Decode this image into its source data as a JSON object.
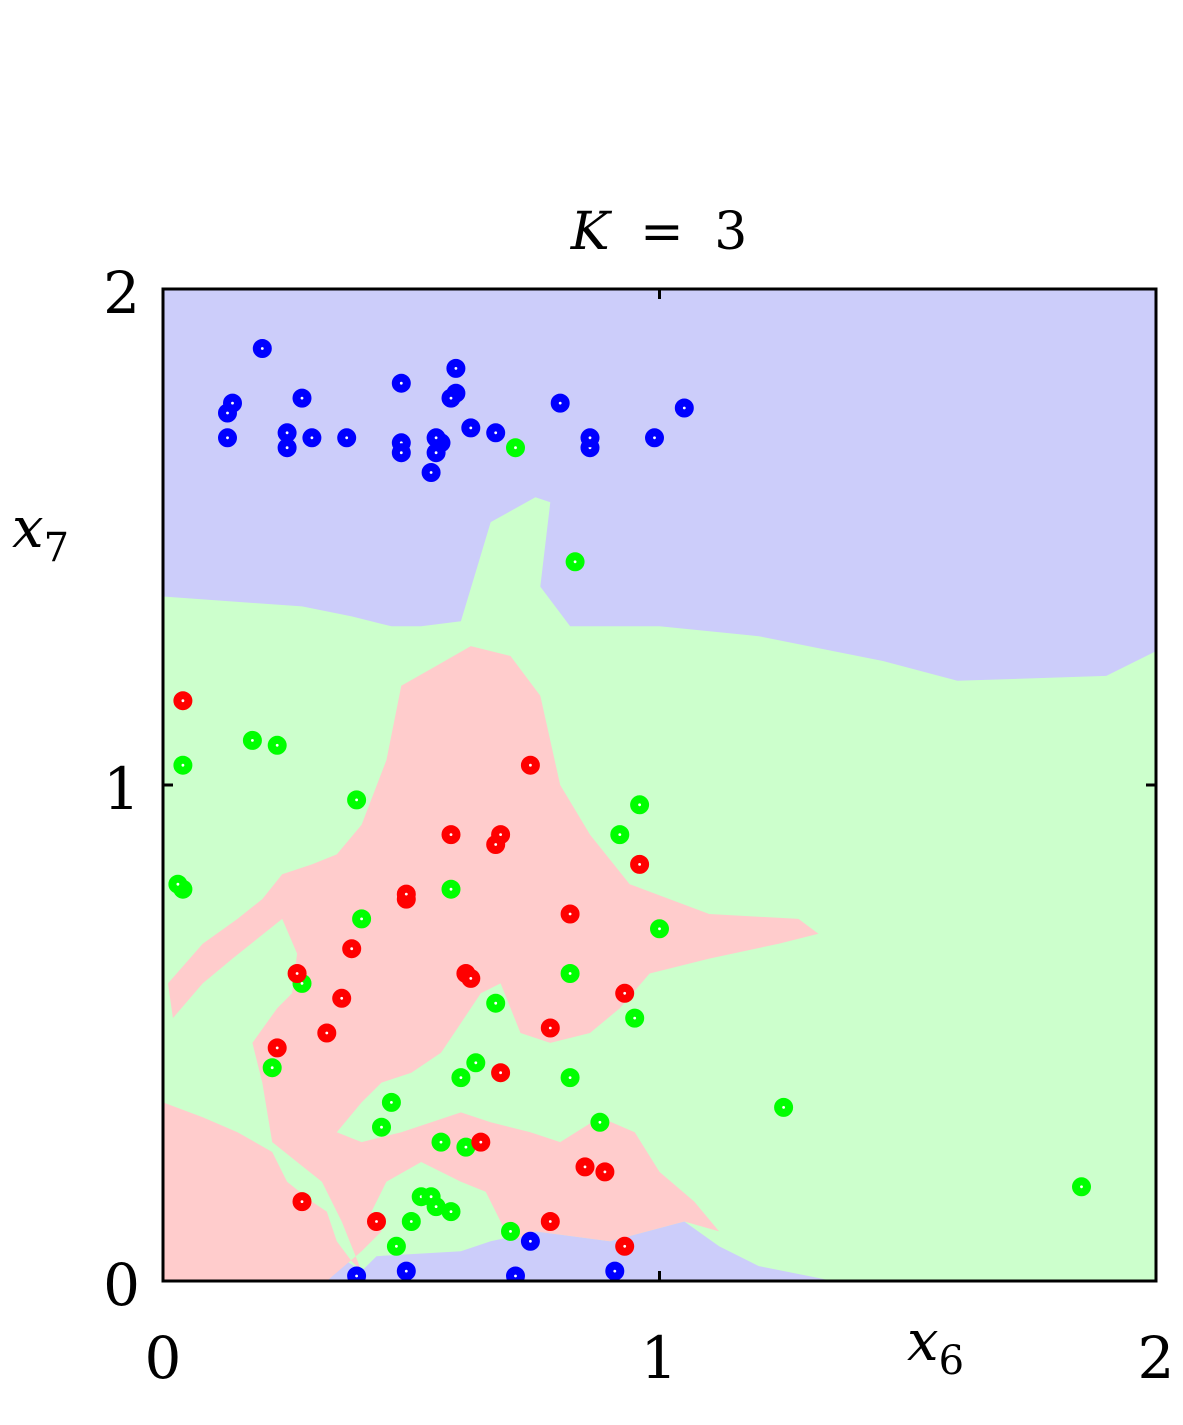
{
  "chart_data": {
    "type": "scatter",
    "title": "K = 3",
    "title_parts": {
      "var": "K",
      "op": "=",
      "num": "3"
    },
    "xlabel": {
      "base": "x",
      "sub": "6"
    },
    "ylabel": {
      "base": "x",
      "sub": "7"
    },
    "xlim": [
      0,
      2
    ],
    "ylim": [
      0,
      2
    ],
    "xticks": [
      "0",
      "1",
      "2"
    ],
    "yticks": [
      "0",
      "1",
      "2"
    ],
    "grid": false,
    "legend": "none",
    "region_colors": {
      "blue": "#cccdfa",
      "green": "#ccffcc",
      "red": "#ffcccc"
    },
    "point_colors": {
      "blue": "#0000ff",
      "green": "#00ff00",
      "red": "#ff0000"
    },
    "regions": {
      "blue": [
        [
          0,
          2
        ],
        [
          2,
          2
        ],
        [
          2,
          1.27
        ],
        [
          1.9,
          1.22
        ],
        [
          1.6,
          1.21
        ],
        [
          1.45,
          1.25
        ],
        [
          1.35,
          1.27
        ],
        [
          1.2,
          1.3
        ],
        [
          1.0,
          1.32
        ],
        [
          0.82,
          1.32
        ],
        [
          0.76,
          1.4
        ],
        [
          0.78,
          1.57
        ],
        [
          0.75,
          1.58
        ],
        [
          0.66,
          1.53
        ],
        [
          0.63,
          1.43
        ],
        [
          0.6,
          1.33
        ],
        [
          0.52,
          1.32
        ],
        [
          0.46,
          1.32
        ],
        [
          0.38,
          1.34
        ],
        [
          0.28,
          1.36
        ],
        [
          0.14,
          1.37
        ],
        [
          0,
          1.38
        ]
      ],
      "blue_bottom": [
        [
          0.33,
          0
        ],
        [
          0.37,
          0.04
        ],
        [
          0.4,
          0.02
        ],
        [
          0.43,
          0.05
        ],
        [
          0.6,
          0.06
        ],
        [
          0.66,
          0.08
        ],
        [
          0.75,
          0.1
        ],
        [
          0.9,
          0.08
        ],
        [
          1.05,
          0.12
        ],
        [
          1.12,
          0.07
        ],
        [
          1.2,
          0.03
        ],
        [
          1.3,
          0.01
        ],
        [
          1.35,
          0
        ]
      ],
      "red": [
        [
          0,
          0.36
        ],
        [
          0.08,
          0.33
        ],
        [
          0.15,
          0.3
        ],
        [
          0.22,
          0.26
        ],
        [
          0.25,
          0.2
        ],
        [
          0.3,
          0.16
        ],
        [
          0.33,
          0.14
        ],
        [
          0.35,
          0.08
        ],
        [
          0.38,
          0.04
        ],
        [
          0.4,
          0.02
        ],
        [
          0.36,
          0.12
        ],
        [
          0.32,
          0.2
        ],
        [
          0.27,
          0.24
        ],
        [
          0.22,
          0.28
        ],
        [
          0.2,
          0.4
        ],
        [
          0.18,
          0.48
        ],
        [
          0.23,
          0.55
        ],
        [
          0.26,
          0.58
        ],
        [
          0.27,
          0.66
        ],
        [
          0.24,
          0.73
        ],
        [
          0.14,
          0.65
        ],
        [
          0.08,
          0.6
        ],
        [
          0.02,
          0.53
        ],
        [
          0.01,
          0.6
        ],
        [
          0.08,
          0.68
        ],
        [
          0.15,
          0.73
        ],
        [
          0.2,
          0.77
        ],
        [
          0.24,
          0.82
        ],
        [
          0.3,
          0.84
        ],
        [
          0.35,
          0.86
        ],
        [
          0.4,
          0.92
        ],
        [
          0.45,
          1.05
        ],
        [
          0.48,
          1.2
        ],
        [
          0.55,
          1.24
        ],
        [
          0.62,
          1.28
        ],
        [
          0.7,
          1.26
        ],
        [
          0.76,
          1.18
        ],
        [
          0.8,
          1.0
        ],
        [
          0.86,
          0.9
        ],
        [
          0.94,
          0.8
        ],
        [
          1.1,
          0.74
        ],
        [
          1.28,
          0.73
        ],
        [
          1.32,
          0.7
        ],
        [
          1.24,
          0.68
        ],
        [
          1.1,
          0.65
        ],
        [
          0.98,
          0.62
        ],
        [
          0.92,
          0.55
        ],
        [
          0.86,
          0.5
        ],
        [
          0.78,
          0.48
        ],
        [
          0.72,
          0.5
        ],
        [
          0.68,
          0.6
        ],
        [
          0.64,
          0.58
        ],
        [
          0.6,
          0.52
        ],
        [
          0.56,
          0.46
        ],
        [
          0.5,
          0.42
        ],
        [
          0.44,
          0.4
        ],
        [
          0.4,
          0.36
        ],
        [
          0.35,
          0.3
        ],
        [
          0.4,
          0.28
        ],
        [
          0.48,
          0.3
        ],
        [
          0.6,
          0.34
        ],
        [
          0.66,
          0.32
        ],
        [
          0.74,
          0.3
        ],
        [
          0.8,
          0.28
        ],
        [
          0.88,
          0.33
        ],
        [
          0.95,
          0.3
        ],
        [
          1.0,
          0.22
        ],
        [
          1.07,
          0.16
        ],
        [
          1.12,
          0.1
        ],
        [
          1.05,
          0.12
        ],
        [
          0.9,
          0.08
        ],
        [
          0.75,
          0.1
        ],
        [
          0.7,
          0.08
        ],
        [
          0.65,
          0.18
        ],
        [
          0.6,
          0.2
        ],
        [
          0.52,
          0.24
        ],
        [
          0.45,
          0.2
        ],
        [
          0.42,
          0.14
        ],
        [
          0.44,
          0.1
        ],
        [
          0.4,
          0.06
        ],
        [
          0.33,
          0
        ],
        [
          0,
          0
        ]
      ]
    },
    "series": [
      {
        "class": "blue",
        "x": [
          0.2,
          0.13,
          0.14,
          0.28,
          0.13,
          0.25,
          0.25,
          0.3,
          0.37,
          0.48,
          0.48,
          0.48,
          0.54,
          0.55,
          0.56,
          0.55,
          0.59,
          0.59,
          0.58,
          0.62,
          0.67,
          0.8,
          0.86,
          0.86,
          0.99,
          1.05,
          0.39,
          0.49,
          0.71,
          0.74,
          0.91
        ],
        "y": [
          1.88,
          1.75,
          1.77,
          1.78,
          1.7,
          1.68,
          1.71,
          1.7,
          1.7,
          1.81,
          1.69,
          1.67,
          1.63,
          1.67,
          1.69,
          1.7,
          1.84,
          1.79,
          1.78,
          1.72,
          1.71,
          1.77,
          1.68,
          1.7,
          1.7,
          1.76,
          0.01,
          0.02,
          0.01,
          0.08,
          0.02
        ]
      },
      {
        "class": "green",
        "x": [
          0.71,
          0.83,
          0.04,
          0.18,
          0.23,
          0.04,
          0.39,
          0.03,
          0.4,
          0.58,
          0.92,
          0.96,
          1.0,
          0.28,
          0.67,
          0.82,
          0.95,
          0.63,
          0.6,
          0.82,
          0.22,
          0.46,
          0.44,
          0.56,
          0.61,
          0.88,
          1.25,
          0.52,
          0.54,
          0.55,
          0.58,
          0.7,
          0.47,
          0.5,
          1.85
        ],
        "y": [
          1.68,
          1.45,
          1.04,
          1.09,
          1.08,
          0.79,
          0.97,
          0.8,
          0.73,
          0.79,
          0.9,
          0.96,
          0.71,
          0.6,
          0.56,
          0.62,
          0.53,
          0.44,
          0.41,
          0.41,
          0.43,
          0.36,
          0.31,
          0.28,
          0.27,
          0.32,
          0.35,
          0.17,
          0.17,
          0.15,
          0.14,
          0.1,
          0.07,
          0.12,
          0.19
        ]
      },
      {
        "class": "red",
        "x": [
          0.04,
          0.74,
          0.58,
          0.68,
          0.67,
          0.49,
          0.49,
          0.96,
          0.82,
          0.38,
          0.27,
          0.36,
          0.61,
          0.62,
          0.33,
          0.93,
          0.78,
          0.23,
          0.68,
          0.64,
          0.85,
          0.89,
          0.28,
          0.43,
          0.78,
          0.93
        ],
        "y": [
          1.17,
          1.04,
          0.9,
          0.9,
          0.88,
          0.77,
          0.78,
          0.84,
          0.74,
          0.67,
          0.62,
          0.57,
          0.62,
          0.61,
          0.5,
          0.58,
          0.51,
          0.47,
          0.42,
          0.28,
          0.23,
          0.22,
          0.16,
          0.12,
          0.12,
          0.07
        ]
      }
    ]
  }
}
